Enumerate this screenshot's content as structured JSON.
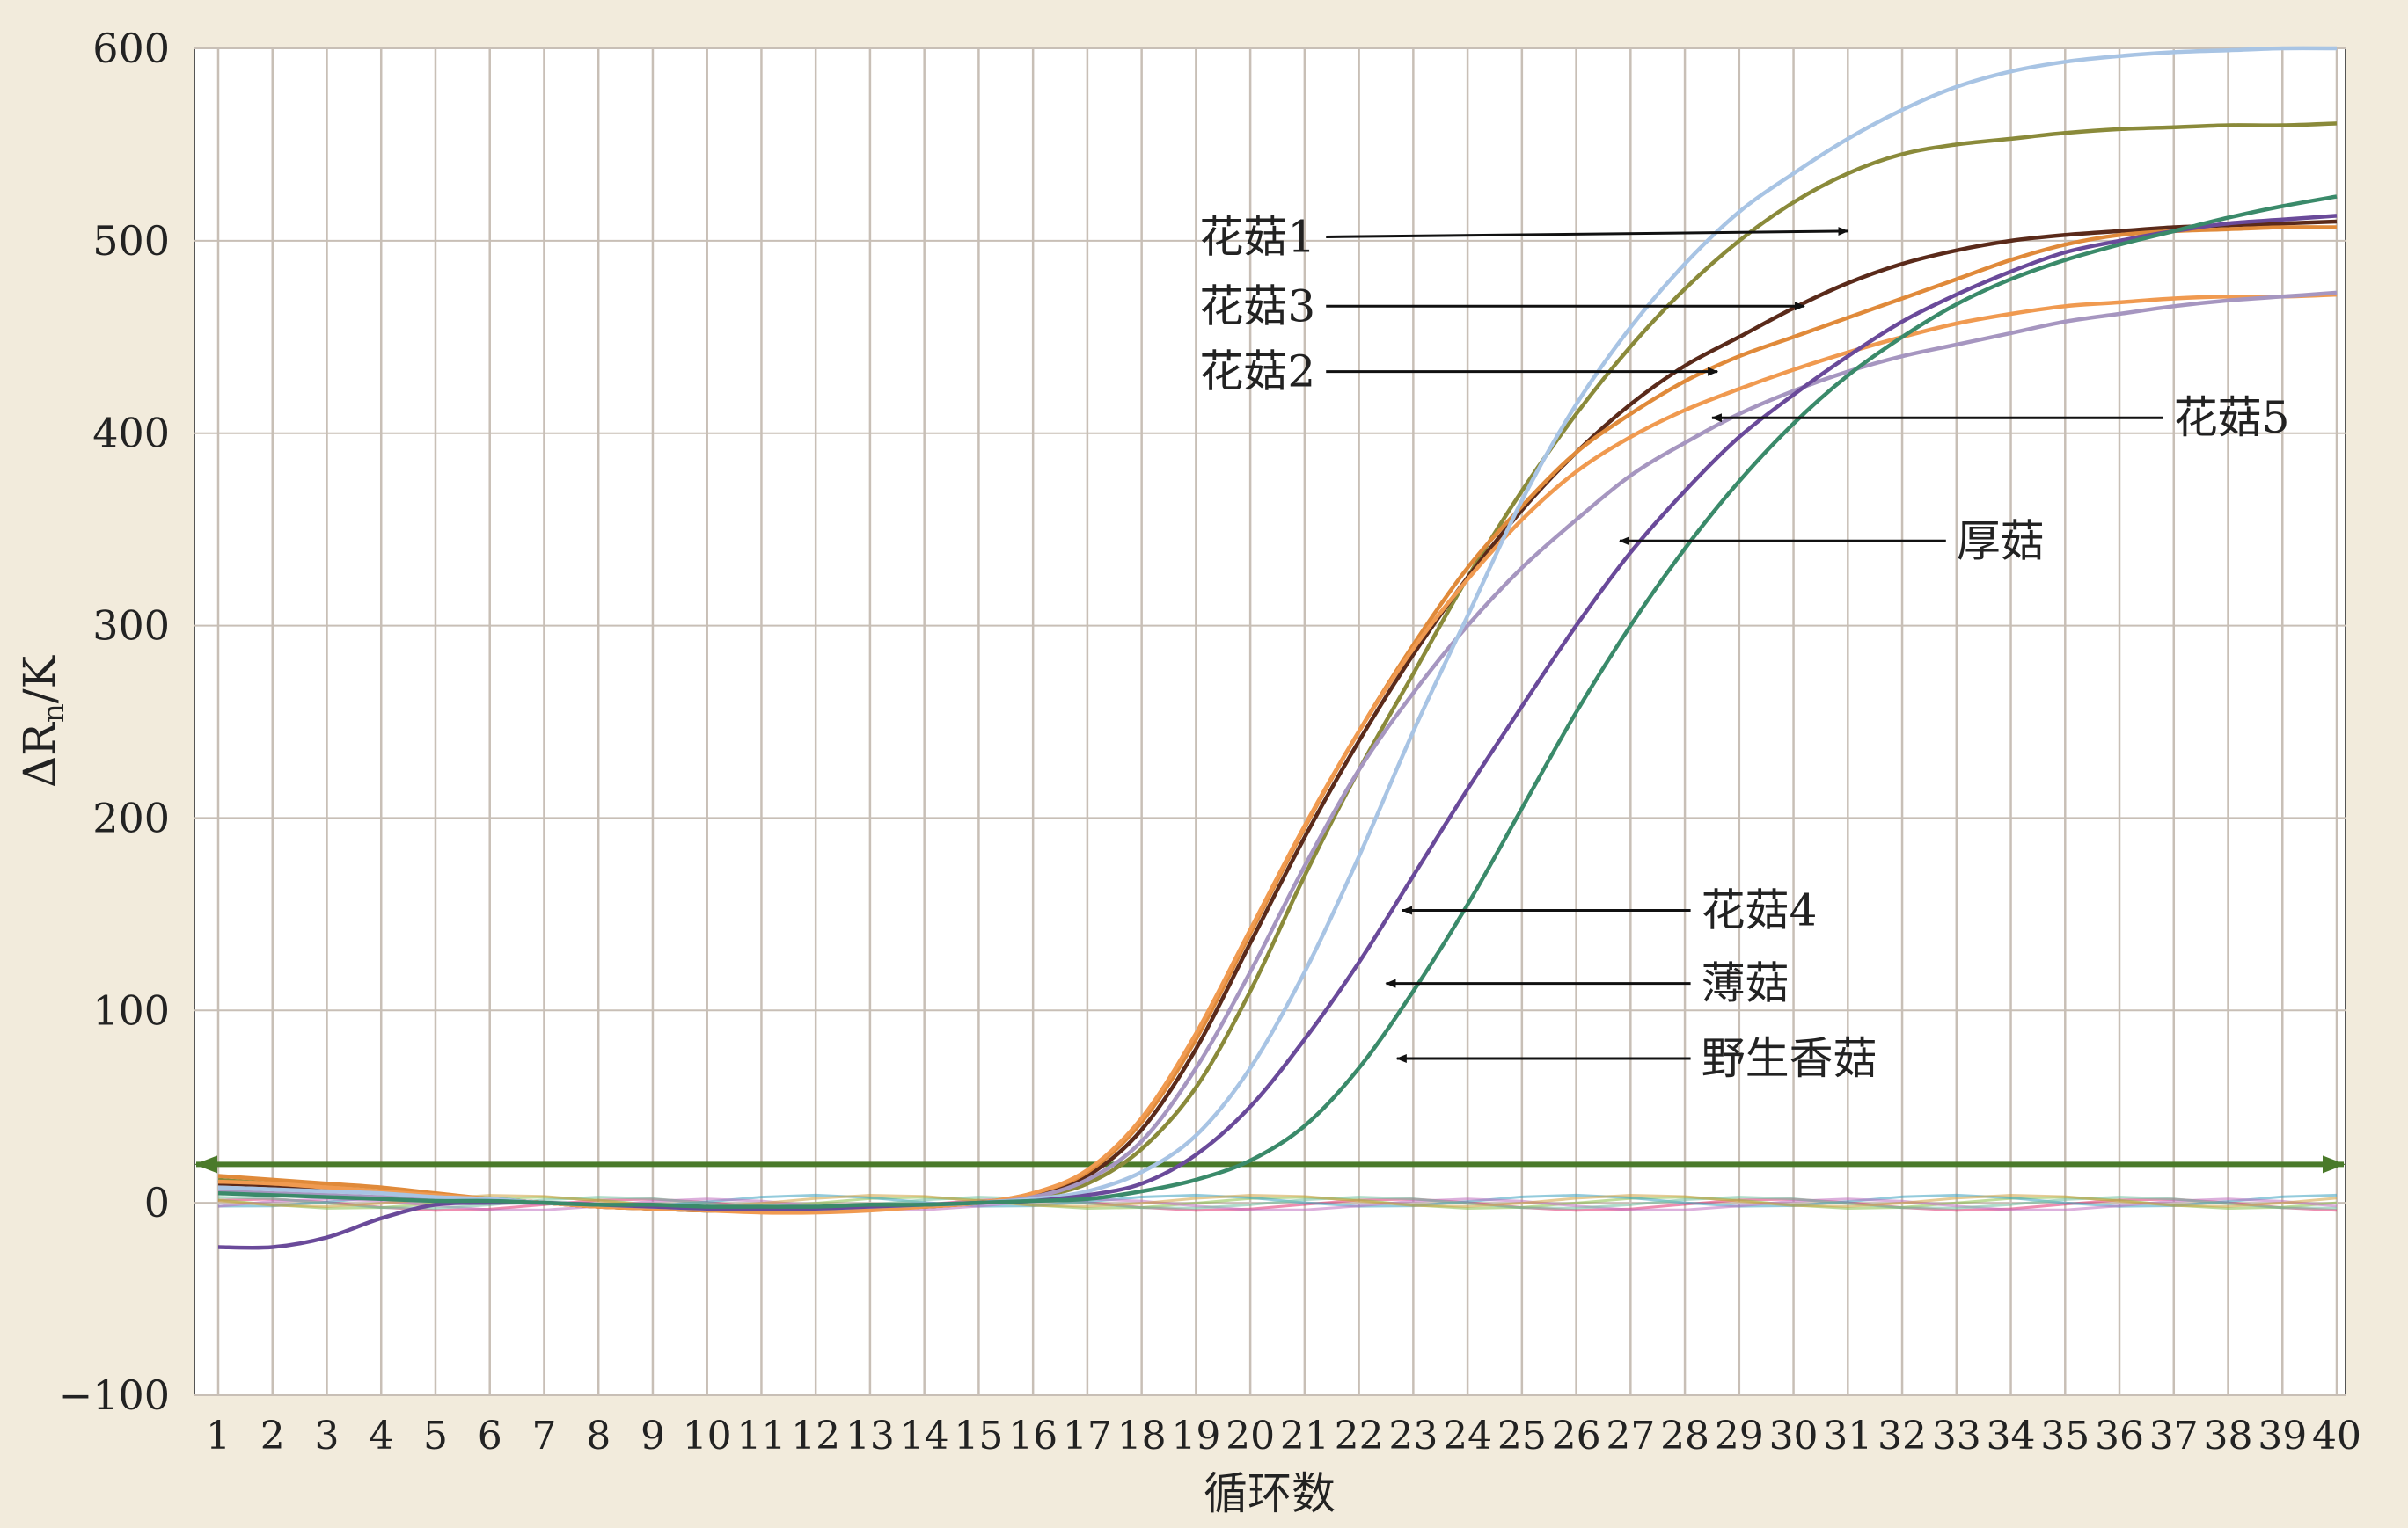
{
  "chart_data": {
    "type": "line",
    "xlabel": "循环数",
    "ylabel": "ΔRn/K",
    "ylabel_main": "ΔR",
    "ylabel_sub": "n",
    "ylabel_tail": "/K",
    "xlim": [
      1,
      40
    ],
    "ylim": [
      -100,
      600
    ],
    "grid": true,
    "x_ticks": [
      "1",
      "2",
      "3",
      "4",
      "5",
      "6",
      "7",
      "8",
      "9",
      "10",
      "11",
      "12",
      "13",
      "14",
      "15",
      "16",
      "17",
      "18",
      "19",
      "20",
      "21",
      "22",
      "23",
      "24",
      "25",
      "26",
      "27",
      "28",
      "29",
      "30",
      "31",
      "32",
      "33",
      "34",
      "35",
      "36",
      "37",
      "38",
      "39",
      "40"
    ],
    "y_ticks": [
      "600",
      "500",
      "400",
      "300",
      "200",
      "100",
      "0",
      "−100"
    ],
    "colors": {
      "background": "#f2ebdc",
      "plot": "#ffffff",
      "grid": "#c8bfb6",
      "threshold": "#4a7a2a"
    },
    "threshold": 20,
    "series": [
      {
        "name": "花菇1",
        "color": "#8a8a3a",
        "values": [
          12,
          10,
          8,
          6,
          4,
          2,
          0,
          -2,
          -3,
          -4,
          -4,
          -4,
          -3,
          -2,
          0,
          3,
          10,
          28,
          60,
          110,
          170,
          225,
          275,
          325,
          370,
          410,
          445,
          475,
          500,
          520,
          535,
          545,
          550,
          553,
          556,
          558,
          559,
          560,
          560,
          561
        ]
      },
      {
        "name": "花菇3",
        "color": "#5a2a1a",
        "values": [
          10,
          9,
          7,
          6,
          4,
          2,
          0,
          -2,
          -3,
          -4,
          -4,
          -4,
          -3,
          -2,
          0,
          4,
          14,
          38,
          80,
          135,
          190,
          240,
          285,
          325,
          360,
          390,
          415,
          435,
          450,
          465,
          478,
          488,
          495,
          500,
          503,
          505,
          507,
          508,
          509,
          510
        ]
      },
      {
        "name": "花菇2",
        "color": "#e08a3a",
        "values": [
          14,
          12,
          10,
          8,
          5,
          2,
          0,
          -2,
          -3,
          -4,
          -4,
          -4,
          -3,
          -2,
          0,
          5,
          16,
          42,
          85,
          140,
          195,
          245,
          290,
          330,
          362,
          390,
          410,
          427,
          440,
          450,
          460,
          470,
          480,
          490,
          498,
          503,
          505,
          506,
          507,
          507
        ]
      },
      {
        "name": "花菇5",
        "color": "#f09a50",
        "values": [
          11,
          10,
          8,
          6,
          4,
          2,
          0,
          -2,
          -3,
          -4,
          -5,
          -5,
          -4,
          -2,
          0,
          5,
          17,
          44,
          88,
          142,
          196,
          245,
          288,
          324,
          355,
          380,
          398,
          412,
          423,
          433,
          442,
          450,
          457,
          462,
          466,
          468,
          470,
          471,
          471,
          472
        ]
      },
      {
        "name": "厚菇",
        "color": "#a696c0",
        "values": [
          6,
          5,
          4,
          3,
          2,
          1,
          0,
          -1,
          -2,
          -2,
          -2,
          -2,
          -2,
          -1,
          0,
          3,
          12,
          32,
          70,
          120,
          175,
          225,
          265,
          300,
          330,
          355,
          378,
          395,
          410,
          422,
          432,
          440,
          446,
          452,
          458,
          462,
          466,
          469,
          471,
          473
        ]
      },
      {
        "name": "花菇4",
        "color": "#a8c4e4",
        "values": [
          8,
          7,
          6,
          5,
          3,
          2,
          0,
          -1,
          -2,
          -3,
          -3,
          -3,
          -2,
          -1,
          0,
          2,
          6,
          16,
          35,
          70,
          120,
          180,
          245,
          305,
          365,
          415,
          455,
          488,
          515,
          535,
          553,
          568,
          580,
          588,
          593,
          596,
          598,
          599,
          600,
          600
        ]
      },
      {
        "name": "薄菇",
        "color": "#6a4a9a",
        "values": [
          -23,
          -23,
          -18,
          -8,
          -1,
          0,
          0,
          -1,
          -2,
          -3,
          -3,
          -3,
          -2,
          -1,
          0,
          1,
          4,
          10,
          25,
          50,
          85,
          125,
          170,
          215,
          258,
          300,
          338,
          370,
          398,
          420,
          440,
          458,
          472,
          484,
          494,
          500,
          505,
          509,
          511,
          513
        ]
      },
      {
        "name": "野生香菇",
        "color": "#3a8a6a",
        "values": [
          5,
          4,
          3,
          2,
          1,
          1,
          0,
          -1,
          -1,
          -2,
          -2,
          -2,
          -1,
          -1,
          0,
          1,
          2,
          6,
          12,
          22,
          40,
          70,
          110,
          155,
          205,
          255,
          300,
          340,
          375,
          405,
          430,
          450,
          467,
          480,
          490,
          498,
          505,
          512,
          518,
          523
        ]
      }
    ],
    "flat_series_colors": [
      "#e03070",
      "#8ac04a",
      "#3aa0c0",
      "#c070c0",
      "#70c0a0",
      "#d0a040"
    ],
    "annotations": [
      {
        "label": "花菇1",
        "series": "花菇1",
        "target": [
          31,
          505
        ],
        "text_pos": [
          21.2,
          502
        ],
        "text_anchor": "end"
      },
      {
        "label": "花菇3",
        "series": "花菇3",
        "target": [
          30.2,
          466
        ],
        "text_pos": [
          21.2,
          466
        ],
        "text_anchor": "end"
      },
      {
        "label": "花菇2",
        "series": "花菇2",
        "target": [
          28.6,
          432
        ],
        "text_pos": [
          21.2,
          432
        ],
        "text_anchor": "end"
      },
      {
        "label": "花菇5",
        "series": "花菇5",
        "target": [
          28.5,
          408
        ],
        "text_pos": [
          37.0,
          408
        ],
        "text_anchor": "start"
      },
      {
        "label": "厚菇",
        "series": "厚菇",
        "target": [
          26.8,
          344
        ],
        "text_pos": [
          33.0,
          344
        ],
        "text_anchor": "start"
      },
      {
        "label": "花菇4",
        "series": "花菇4",
        "target": [
          22.8,
          152
        ],
        "text_pos": [
          28.3,
          152
        ],
        "text_anchor": "start"
      },
      {
        "label": "薄菇",
        "series": "薄菇",
        "target": [
          22.5,
          114
        ],
        "text_pos": [
          28.3,
          114
        ],
        "text_anchor": "start"
      },
      {
        "label": "野生香菇",
        "series": "野生香菇",
        "target": [
          22.7,
          75
        ],
        "text_pos": [
          28.3,
          75
        ],
        "text_anchor": "start"
      }
    ]
  }
}
